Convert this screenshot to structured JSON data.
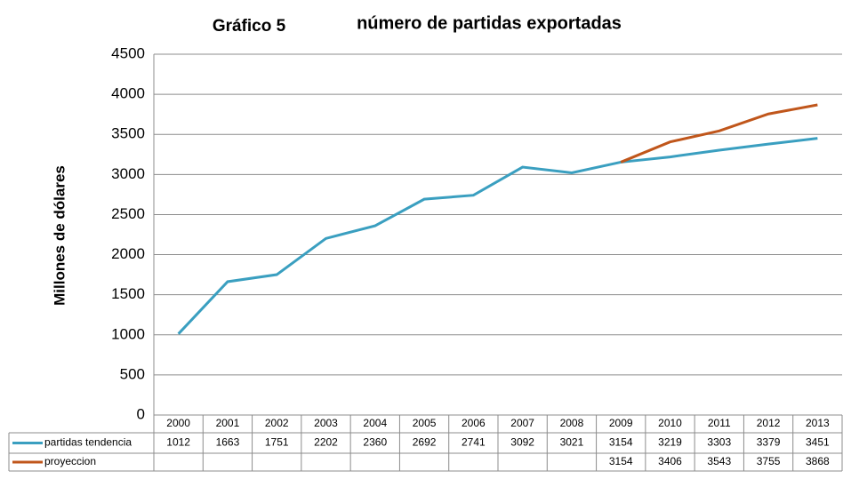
{
  "chart_data": {
    "type": "line",
    "title": "Gráfico 5",
    "subtitle": "número de partidas exportadas",
    "y_label": "Millones de dólares",
    "categories": [
      "2000",
      "2001",
      "2002",
      "2003",
      "2004",
      "2005",
      "2006",
      "2007",
      "2008",
      "2009",
      "2010",
      "2011",
      "2012",
      "2013"
    ],
    "series": [
      {
        "name": "partidas tendencia",
        "color": "#3a9fc0",
        "values": [
          1012,
          1663,
          1751,
          2202,
          2360,
          2692,
          2741,
          3092,
          3021,
          3154,
          3219,
          3303,
          3379,
          3451
        ]
      },
      {
        "name": "proyeccion",
        "color": "#c0561b",
        "values": [
          null,
          null,
          null,
          null,
          null,
          null,
          null,
          null,
          null,
          3154,
          3406,
          3543,
          3755,
          3868
        ]
      }
    ],
    "ylim": [
      0,
      4500
    ],
    "yticks": [
      0,
      500,
      1000,
      1500,
      2000,
      2500,
      3000,
      3500,
      4000,
      4500
    ],
    "grid": true
  }
}
